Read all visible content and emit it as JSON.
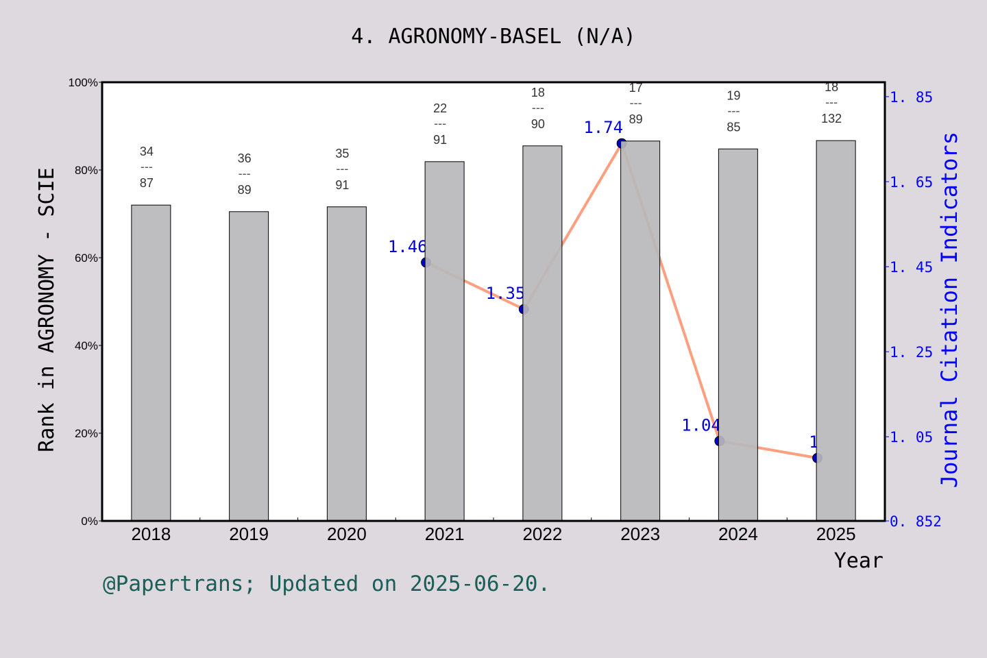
{
  "chart_data": {
    "type": "bar+line",
    "title": "4. AGRONOMY-BASEL (N/A)",
    "xlabel": "Year",
    "ylabel": "Rank in AGRONOMY - SCIE",
    "y2label": "Journal Citation Indicators",
    "categories": [
      "2018",
      "2019",
      "2020",
      "2021",
      "2022",
      "2023",
      "2024",
      "2025"
    ],
    "ylim": [
      0,
      100
    ],
    "yticks": [
      "0%",
      "20%",
      "40%",
      "60%",
      "80%",
      "100%"
    ],
    "y2lim": [
      0.852,
      1.85
    ],
    "y2ticks": [
      "0.852",
      "1.05",
      "1.25",
      "1.45",
      "1.65",
      "1.85"
    ],
    "bars": {
      "values": [
        72.0,
        70.5,
        71.6,
        81.9,
        85.5,
        86.6,
        84.8,
        86.7
      ],
      "ranks": [
        "34",
        "36",
        "35",
        "22",
        "18",
        "17",
        "19",
        "18"
      ],
      "totals": [
        "87",
        "89",
        "91",
        "91",
        "90",
        "89",
        "85",
        "132"
      ],
      "color": "#b8b9bb"
    },
    "line": {
      "x": [
        "2021",
        "2022",
        "2023",
        "2024",
        "2025"
      ],
      "values": [
        1.46,
        1.35,
        1.74,
        1.04,
        1.0
      ],
      "labels": [
        "1.46",
        "1.35",
        "1.74",
        "1.04",
        "1"
      ],
      "color": "#ff9f7f",
      "marker_color": "#0000cc"
    },
    "grid": false
  },
  "footer": "@Papertrans; Updated on 2025-06-20."
}
